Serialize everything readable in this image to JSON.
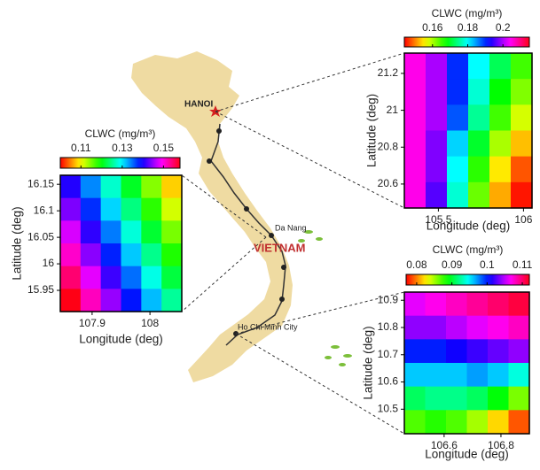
{
  "map": {
    "hanoi": "HANOI",
    "danang": "Da Nang",
    "country": "VIETNAM",
    "hcmc": "Ho Chi Minh City"
  },
  "chart_data": [
    {
      "type": "heatmap",
      "colorbar_title": "CLWC (mg/m³)",
      "x_label": "Longitude (deg)",
      "y_label": "Latitude (deg)",
      "xlim": [
        105.3,
        106.05
      ],
      "ylim": [
        20.47,
        21.31
      ],
      "xticks": [
        105.5,
        106
      ],
      "yticks": [
        20.6,
        20.8,
        21,
        21.2
      ],
      "clim": [
        0.144,
        0.215
      ],
      "cticks": [
        0.16,
        0.18,
        0.2
      ],
      "z": [
        [
          0.205,
          0.2,
          0.19,
          0.18,
          0.172,
          0.165
        ],
        [
          0.205,
          0.2,
          0.19,
          0.178,
          0.168,
          0.162
        ],
        [
          0.205,
          0.2,
          0.188,
          0.175,
          0.165,
          0.158
        ],
        [
          0.205,
          0.198,
          0.182,
          0.17,
          0.16,
          0.153
        ],
        [
          0.205,
          0.198,
          0.18,
          0.166,
          0.155,
          0.148
        ],
        [
          0.205,
          0.196,
          0.178,
          0.163,
          0.152,
          0.145
        ]
      ]
    },
    {
      "type": "heatmap",
      "colorbar_title": "CLWC (mg/m³)",
      "x_label": "Longitude (deg)",
      "y_label": "Latitude (deg)",
      "xlim": [
        107.845,
        108.055
      ],
      "ylim": [
        15.91,
        16.167
      ],
      "xticks": [
        107.9,
        108
      ],
      "yticks": [
        15.95,
        16,
        16.05,
        16.1,
        16.15
      ],
      "clim": [
        0.1,
        0.158
      ],
      "cticks": [
        0.11,
        0.13,
        0.15
      ],
      "z": [
        [
          0.1405,
          0.134,
          0.1275,
          0.121,
          0.1145,
          0.108
        ],
        [
          0.144,
          0.1375,
          0.131,
          0.1245,
          0.118,
          0.1115
        ],
        [
          0.1475,
          0.141,
          0.1345,
          0.128,
          0.1215,
          0.115
        ],
        [
          0.151,
          0.1445,
          0.138,
          0.1315,
          0.125,
          0.1185
        ],
        [
          0.1545,
          0.148,
          0.1415,
          0.135,
          0.1285,
          0.122
        ],
        [
          0.158,
          0.1515,
          0.145,
          0.1385,
          0.132,
          0.1255
        ]
      ]
    },
    {
      "type": "heatmap",
      "colorbar_title": "CLWC (mg/m³)",
      "x_label": "Longitude (deg)",
      "y_label": "Latitude (deg)",
      "xlim": [
        106.46,
        106.9
      ],
      "ylim": [
        10.41,
        10.93
      ],
      "xticks": [
        106.6,
        106.8
      ],
      "yticks": [
        10.5,
        10.6,
        10.7,
        10.8,
        10.9
      ],
      "clim": [
        0.077,
        0.112
      ],
      "cticks": [
        0.08,
        0.09,
        0.1,
        0.11
      ],
      "z": [
        [
          0.106,
          0.107,
          0.108,
          0.109,
          0.11,
          0.111
        ],
        [
          0.104,
          0.104,
          0.105,
          0.106,
          0.107,
          0.108
        ],
        [
          0.1,
          0.1,
          0.101,
          0.102,
          0.103,
          0.104
        ],
        [
          0.096,
          0.096,
          0.096,
          0.097,
          0.096,
          0.094
        ],
        [
          0.091,
          0.092,
          0.092,
          0.091,
          0.089,
          0.086
        ],
        [
          0.087,
          0.088,
          0.087,
          0.085,
          0.082,
          0.079
        ]
      ]
    }
  ]
}
